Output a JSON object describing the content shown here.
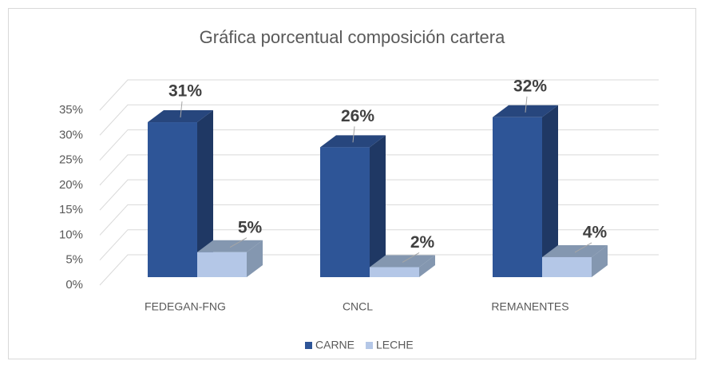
{
  "chart_data": {
    "type": "bar3d",
    "title": "Gráfica porcentual composición cartera",
    "categories": [
      "FEDEGAN-FNG",
      "CNCL",
      "REMANENTES"
    ],
    "series": [
      {
        "name": "CARNE",
        "color": "#2e5597",
        "values": [
          31,
          26,
          32
        ],
        "value_labels": [
          "31%",
          "26%",
          "32%"
        ]
      },
      {
        "name": "LECHE",
        "color": "#b4c7e7",
        "values": [
          5,
          2,
          4
        ],
        "value_labels": [
          "5%",
          "2%",
          "4%"
        ]
      }
    ],
    "ylim": [
      0,
      35
    ],
    "yticks": [
      {
        "value": 0,
        "label": "0%"
      },
      {
        "value": 5,
        "label": "5%"
      },
      {
        "value": 10,
        "label": "10%"
      },
      {
        "value": 15,
        "label": "15%"
      },
      {
        "value": 20,
        "label": "20%"
      },
      {
        "value": 25,
        "label": "25%"
      },
      {
        "value": 30,
        "label": "30%"
      },
      {
        "value": 35,
        "label": "35%"
      }
    ],
    "grid": true,
    "legend": "bottom"
  }
}
